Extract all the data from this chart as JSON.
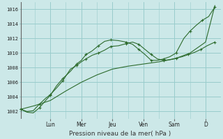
{
  "xlabel": "Pression niveau de la mer( hPa )",
  "bg_color": "#cce8e8",
  "grid_color": "#99cccc",
  "line_color": "#2d6b2d",
  "ylim": [
    1001.0,
    1017.0
  ],
  "yticks": [
    1002,
    1004,
    1006,
    1008,
    1010,
    1012,
    1014,
    1016
  ],
  "day_labels": [
    "Lun",
    "Mer",
    "Jeu",
    "Ven",
    "Sam",
    "D"
  ],
  "day_positions": [
    1.0,
    2.0,
    3.0,
    4.0,
    5.0,
    6.0
  ],
  "xlim": [
    0.0,
    6.5
  ],
  "series1_x": [
    0.05,
    0.25,
    0.45,
    0.65,
    0.85,
    1.0,
    1.2,
    1.4,
    1.65,
    1.85,
    2.0,
    2.15,
    2.35,
    2.55,
    2.75,
    2.95,
    3.2,
    3.45,
    3.65,
    3.85,
    4.05,
    4.25,
    4.45,
    4.65,
    4.85,
    5.05,
    5.25,
    5.45,
    5.65,
    5.85,
    6.05,
    6.3
  ],
  "series1_y": [
    1002.3,
    1002.0,
    1002.1,
    1003.0,
    1003.8,
    1004.3,
    1005.2,
    1006.2,
    1007.8,
    1008.3,
    1008.8,
    1009.2,
    1009.7,
    1010.0,
    1010.4,
    1010.9,
    1011.0,
    1011.3,
    1011.5,
    1011.2,
    1010.5,
    1009.8,
    1009.2,
    1009.0,
    1009.1,
    1009.3,
    1009.5,
    1009.8,
    1010.1,
    1010.5,
    1011.0,
    1011.5
  ],
  "series2_x": [
    0.05,
    0.25,
    0.45,
    0.65,
    0.85,
    1.0,
    1.2,
    1.4,
    1.65,
    1.85,
    2.0,
    2.15,
    2.35,
    2.55,
    2.75,
    2.95,
    3.2,
    3.45,
    3.65,
    3.85,
    4.05,
    4.25,
    4.45,
    4.65,
    4.85,
    5.05,
    5.3,
    5.5,
    5.7,
    5.9,
    6.1,
    6.3
  ],
  "series2_y": [
    1002.3,
    1001.9,
    1001.8,
    1002.5,
    1003.5,
    1004.2,
    1005.5,
    1006.5,
    1007.5,
    1008.5,
    1009.0,
    1009.8,
    1010.3,
    1011.0,
    1011.6,
    1011.8,
    1011.7,
    1011.5,
    1011.2,
    1010.5,
    1009.8,
    1009.0,
    1009.0,
    1009.2,
    1009.5,
    1010.0,
    1012.0,
    1013.0,
    1013.8,
    1014.5,
    1015.0,
    1016.3
  ],
  "series3_x": [
    0.05,
    0.5,
    1.0,
    1.5,
    2.0,
    2.5,
    3.0,
    3.5,
    4.0,
    4.5,
    5.0,
    5.5,
    6.0,
    6.3
  ],
  "series3_y": [
    1002.3,
    1002.8,
    1003.5,
    1004.8,
    1006.0,
    1007.0,
    1007.8,
    1008.2,
    1008.5,
    1008.8,
    1009.2,
    1010.0,
    1011.5,
    1016.5
  ],
  "markers1_x": [
    0.05,
    0.65,
    1.0,
    1.4,
    1.85,
    2.15,
    2.55,
    2.95,
    3.45,
    3.85,
    4.25,
    4.65,
    5.05,
    5.45,
    5.85,
    6.3
  ],
  "markers1_y": [
    1002.3,
    1003.0,
    1004.3,
    1006.2,
    1008.3,
    1009.2,
    1010.0,
    1010.9,
    1011.3,
    1011.2,
    1009.8,
    1009.0,
    1009.3,
    1009.8,
    1010.5,
    1011.5
  ],
  "markers2_x": [
    0.05,
    0.65,
    1.0,
    1.4,
    1.85,
    2.15,
    2.55,
    2.95,
    3.45,
    3.85,
    4.25,
    4.65,
    5.05,
    5.5,
    5.9,
    6.3
  ],
  "markers2_y": [
    1002.3,
    1002.5,
    1004.2,
    1006.5,
    1008.5,
    1009.8,
    1011.0,
    1011.8,
    1011.5,
    1010.5,
    1009.0,
    1009.2,
    1010.0,
    1013.0,
    1014.5,
    1016.3
  ],
  "markers3_x": [
    0.05,
    0.5,
    1.0,
    1.5,
    2.0,
    2.5,
    3.0,
    3.5,
    4.0,
    4.5,
    5.0,
    5.5,
    6.0,
    6.3
  ],
  "markers3_y": [
    1002.3,
    1002.8,
    1003.5,
    1004.8,
    1006.0,
    1007.0,
    1007.8,
    1008.2,
    1008.5,
    1008.8,
    1009.2,
    1010.0,
    1011.5,
    1016.5
  ]
}
